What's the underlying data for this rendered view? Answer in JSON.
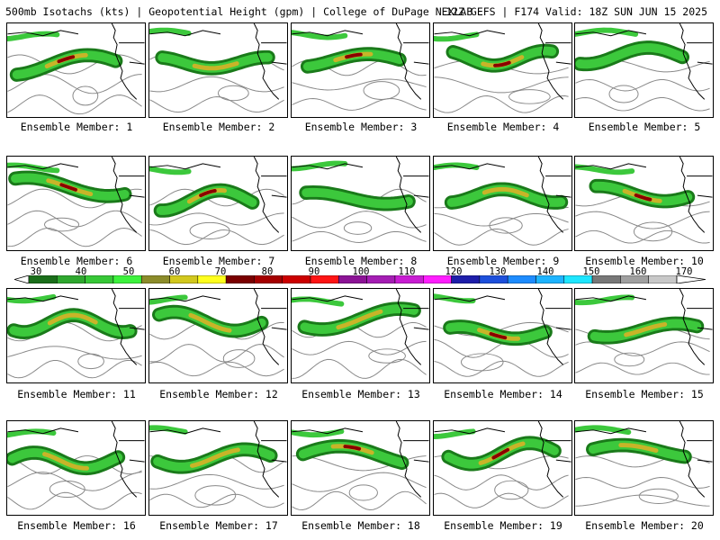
{
  "header": {
    "left": "500mb Isotachs (kts) | Geopotential Height (gpm) | College of DuPage NEXLAB",
    "right": "12Z GEFS | F174 Valid: 18Z SUN JUN 15 2025"
  },
  "members": [
    {
      "label": "Ensemble Member: 1",
      "maxband": 3
    },
    {
      "label": "Ensemble Member: 2",
      "maxband": 2
    },
    {
      "label": "Ensemble Member: 3",
      "maxband": 3
    },
    {
      "label": "Ensemble Member: 4",
      "maxband": 3
    },
    {
      "label": "Ensemble Member: 5",
      "maxband": 1
    },
    {
      "label": "Ensemble Member: 6",
      "maxband": 3
    },
    {
      "label": "Ensemble Member: 7",
      "maxband": 3
    },
    {
      "label": "Ensemble Member: 8",
      "maxband": 1
    },
    {
      "label": "Ensemble Member: 9",
      "maxband": 2
    },
    {
      "label": "Ensemble Member: 10",
      "maxband": 3
    },
    {
      "label": "Ensemble Member: 11",
      "maxband": 2
    },
    {
      "label": "Ensemble Member: 12",
      "maxband": 2
    },
    {
      "label": "Ensemble Member: 13",
      "maxband": 2
    },
    {
      "label": "Ensemble Member: 14",
      "maxband": 3
    },
    {
      "label": "Ensemble Member: 15",
      "maxband": 2
    },
    {
      "label": "Ensemble Member: 16",
      "maxband": 2
    },
    {
      "label": "Ensemble Member: 17",
      "maxband": 2
    },
    {
      "label": "Ensemble Member: 18",
      "maxband": 3
    },
    {
      "label": "Ensemble Member: 19",
      "maxband": 3
    },
    {
      "label": "Ensemble Member: 20",
      "maxband": 2
    }
  ],
  "colorbar": {
    "labels": [
      "30",
      "40",
      "50",
      "60",
      "70",
      "80",
      "90",
      "100",
      "110",
      "120",
      "130",
      "140",
      "150",
      "160",
      "170"
    ],
    "colors": [
      "#1a6e1a",
      "#2fa82f",
      "#37c837",
      "#3df23d",
      "#8c8c2a",
      "#d2c81e",
      "#ffff1e",
      "#7a0000",
      "#a50000",
      "#cc0000",
      "#ff1414",
      "#8c1496",
      "#a51eb4",
      "#c81ed2",
      "#ff1eff",
      "#1e1eaa",
      "#1e50dc",
      "#1e8cff",
      "#1eb4ff",
      "#1ee6ff",
      "#787878",
      "#a0a0a0",
      "#c8c8c8"
    ]
  },
  "legend_colors": {
    "band1": "#1a7a1a",
    "band2": "#3cc83c",
    "band3": "#c8b428",
    "core": "#8b0000",
    "height_contour": "#888888",
    "map_lines": "#000000"
  }
}
